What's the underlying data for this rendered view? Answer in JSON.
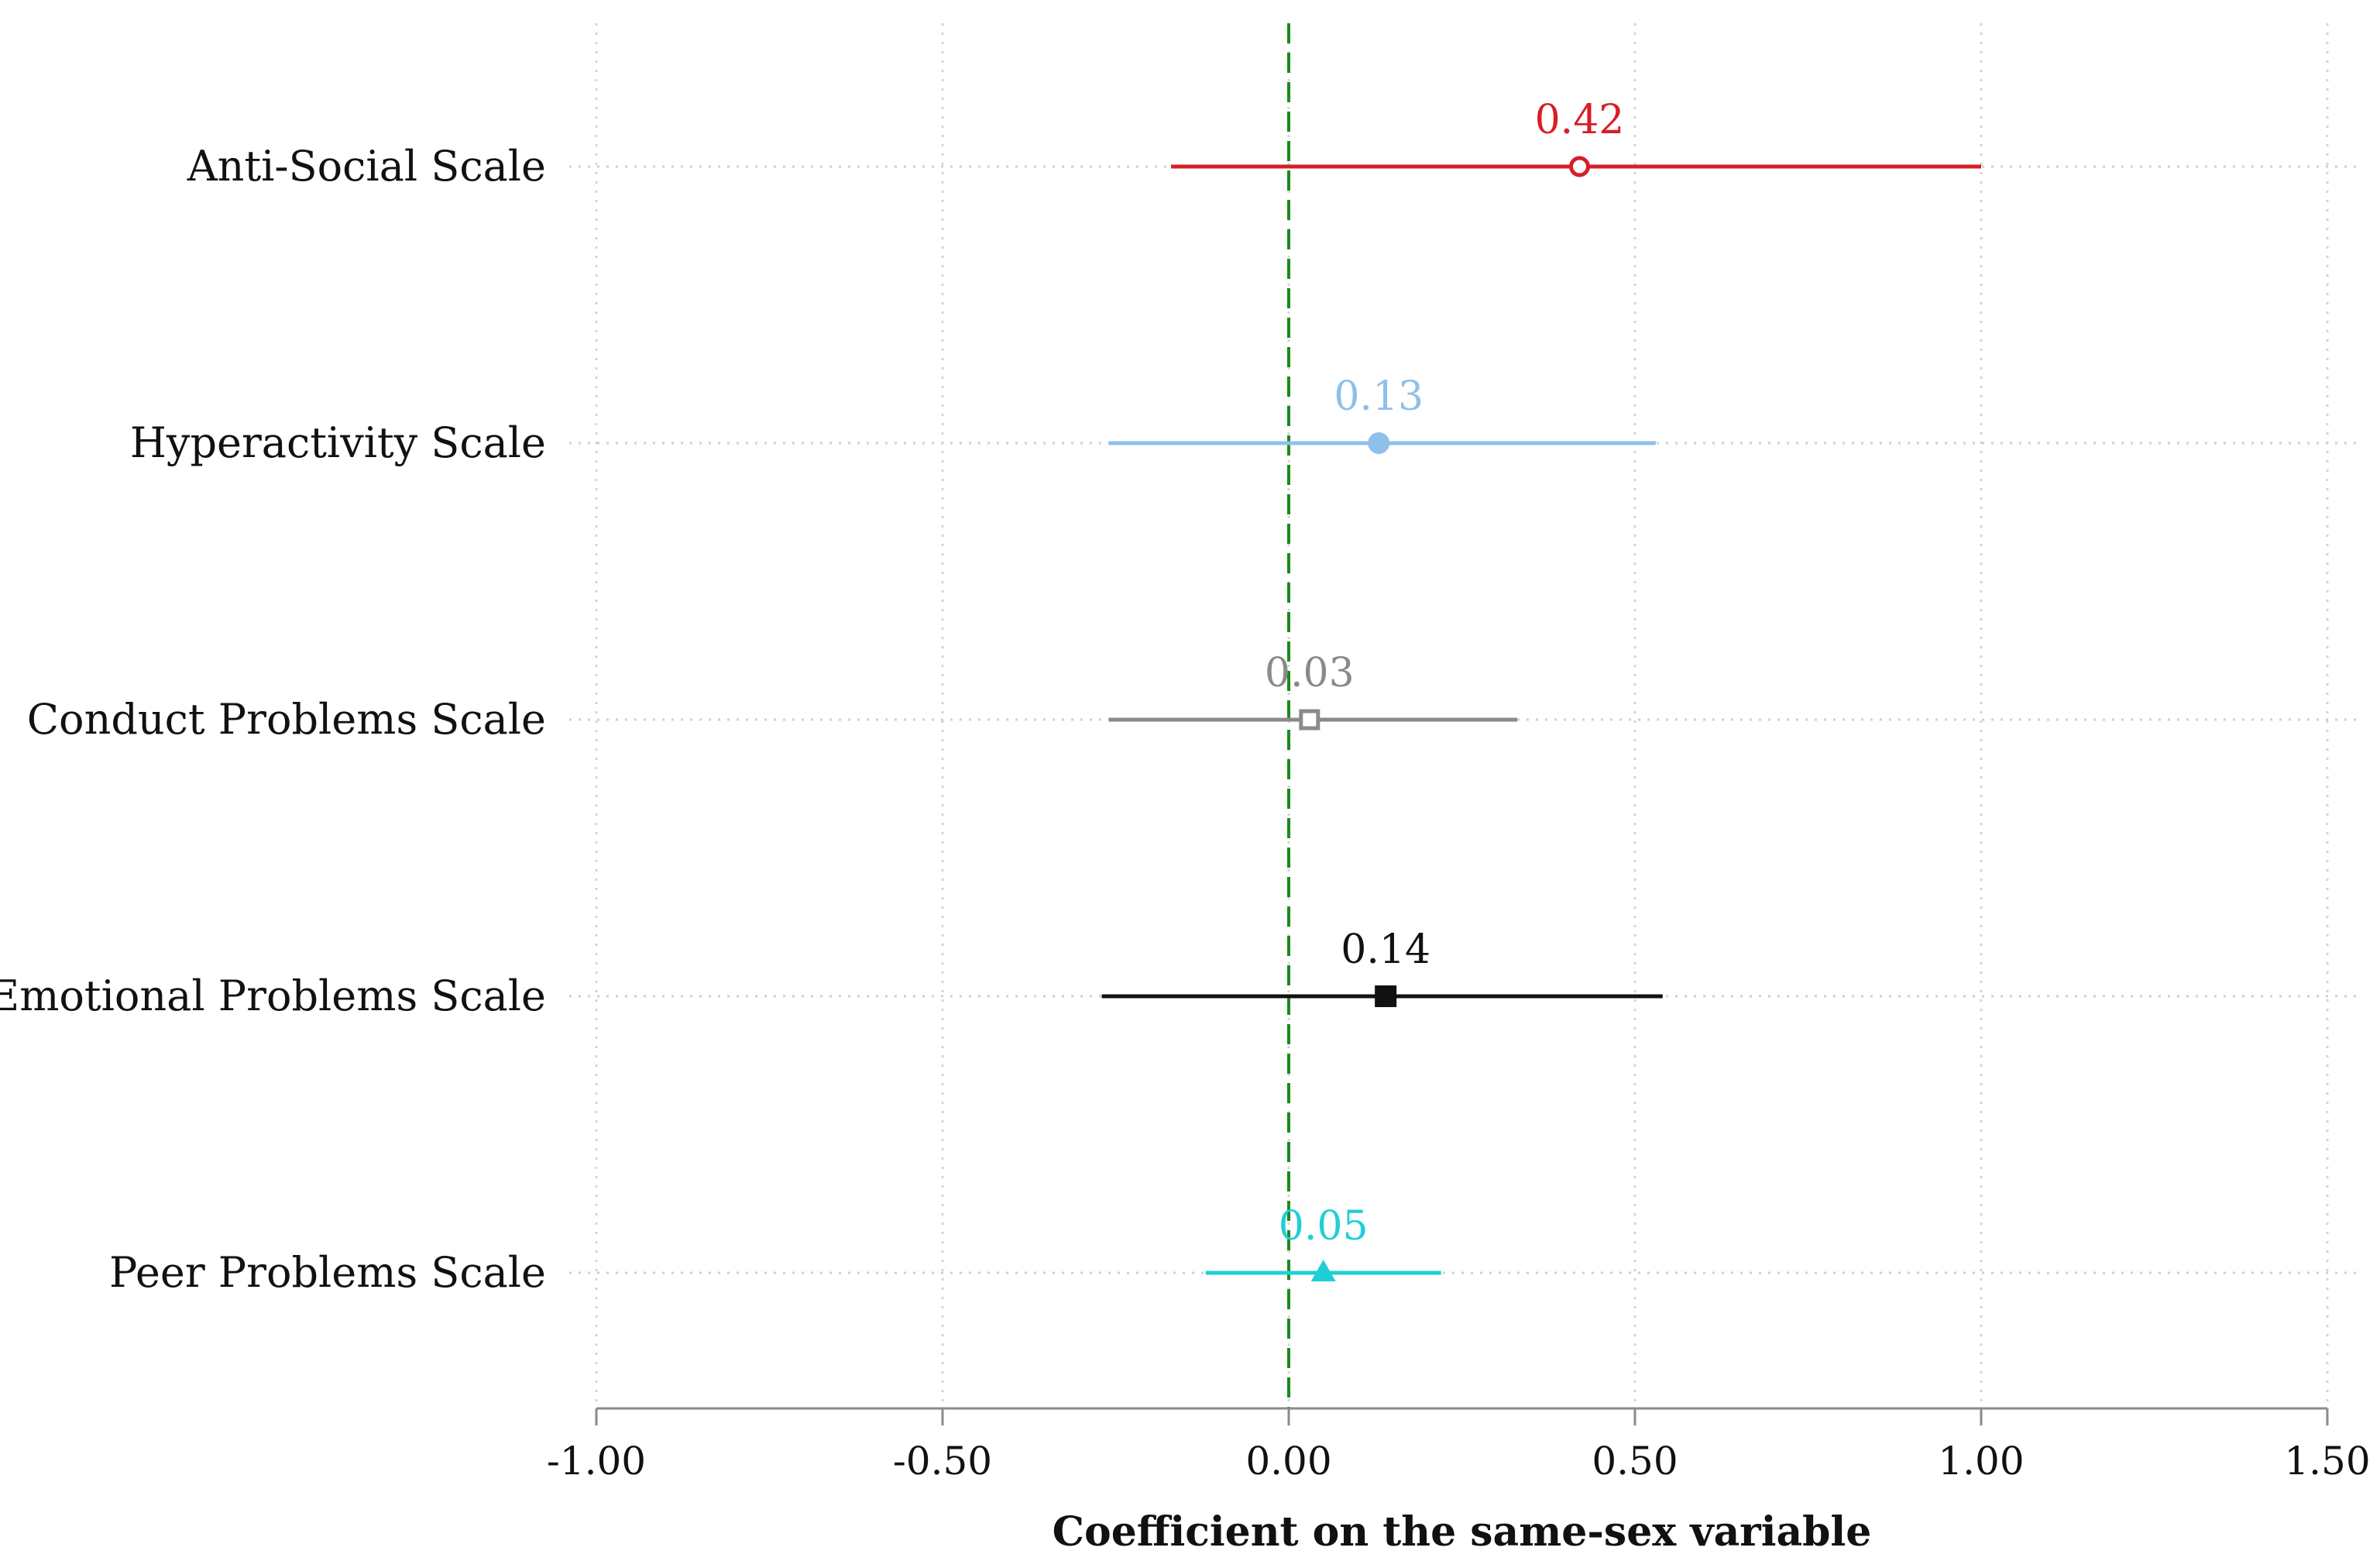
{
  "chart_data": {
    "type": "scatter",
    "xlabel": "Coefficient on the same-sex variable",
    "xlim": [
      -1.0,
      1.5
    ],
    "xticks": [
      -1.0,
      -0.5,
      0.0,
      0.5,
      1.0,
      1.5
    ],
    "xtick_labels": [
      "-1.00",
      "-0.50",
      "0.00",
      "0.50",
      "1.00",
      "1.50"
    ],
    "reference_line": {
      "x": 0,
      "style": "dashed",
      "color": "#1a8a1a"
    },
    "grid": true,
    "series": [
      {
        "category": "Anti-Social Scale",
        "estimate": 0.42,
        "label": "0.42",
        "ci": [
          -0.17,
          1.0
        ],
        "color": "#d61f26",
        "marker": "hollow-circle"
      },
      {
        "category": "Hyperactivity Scale",
        "estimate": 0.13,
        "label": "0.13",
        "ci": [
          -0.26,
          0.53
        ],
        "color": "#8ec0ea",
        "marker": "filled-circle"
      },
      {
        "category": "Conduct Problems Scale",
        "estimate": 0.03,
        "label": "0.03",
        "ci": [
          -0.26,
          0.33
        ],
        "color": "#8a8a8a",
        "marker": "hollow-square"
      },
      {
        "category": "Emotional Problems Scale",
        "estimate": 0.14,
        "label": "0.14",
        "ci": [
          -0.27,
          0.54
        ],
        "color": "#111111",
        "marker": "filled-square"
      },
      {
        "category": "Peer Problems Scale",
        "estimate": 0.05,
        "label": "0.05",
        "ci": [
          -0.12,
          0.22
        ],
        "color": "#1fcfd6",
        "marker": "filled-triangle"
      }
    ]
  }
}
